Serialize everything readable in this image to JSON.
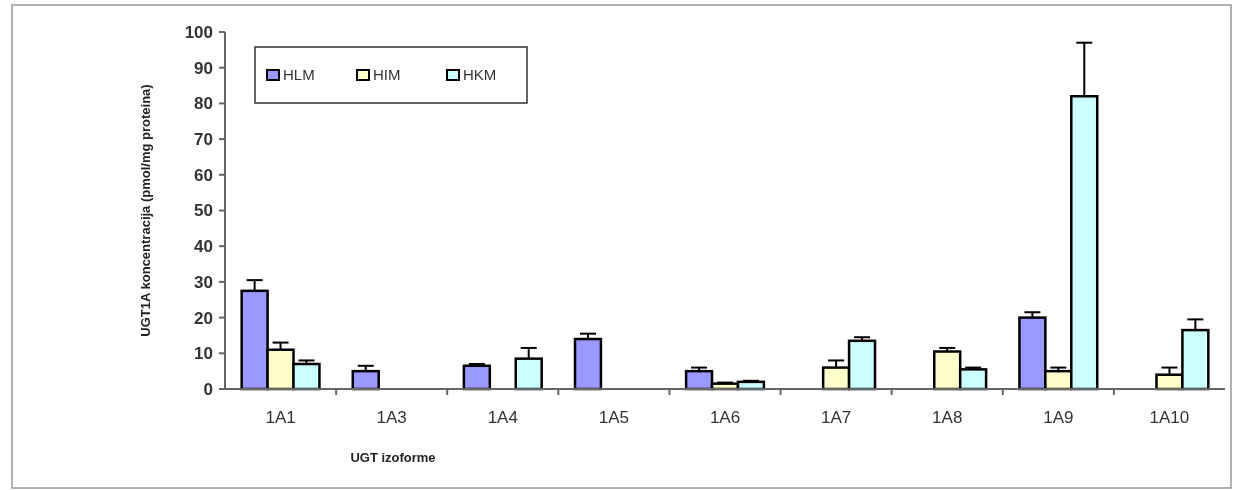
{
  "chart_data": {
    "type": "bar",
    "xlabel": "UGT izoforme",
    "ylabel": "UGT1A koncentracija (pmol/mg proteina)",
    "categories": [
      "1A1",
      "1A3",
      "1A4",
      "1A5",
      "1A6",
      "1A7",
      "1A8",
      "1A9",
      "1A10"
    ],
    "series": [
      {
        "name": "HLM",
        "color": "#9999ff",
        "values": [
          27.5,
          5,
          6.5,
          14,
          5,
          null,
          null,
          20,
          null
        ],
        "errors": [
          3,
          1.5,
          0.5,
          1.5,
          1,
          null,
          null,
          1.5,
          null
        ]
      },
      {
        "name": "HIM",
        "color": "#ffffcc",
        "values": [
          11,
          null,
          null,
          null,
          1.5,
          6,
          10.5,
          5,
          4
        ],
        "errors": [
          2,
          null,
          null,
          null,
          0.3,
          2,
          1,
          1,
          2
        ]
      },
      {
        "name": "HKM",
        "color": "#ccffff",
        "values": [
          7,
          null,
          8.5,
          null,
          2,
          13.5,
          5.5,
          82,
          16.5
        ],
        "errors": [
          1,
          null,
          3,
          null,
          0.3,
          1,
          0.5,
          15,
          3
        ]
      }
    ],
    "ylim": [
      0,
      100
    ],
    "yticks": [
      0,
      10,
      20,
      30,
      40,
      50,
      60,
      70,
      80,
      90,
      100
    ],
    "grid": false,
    "legend": "top left"
  }
}
